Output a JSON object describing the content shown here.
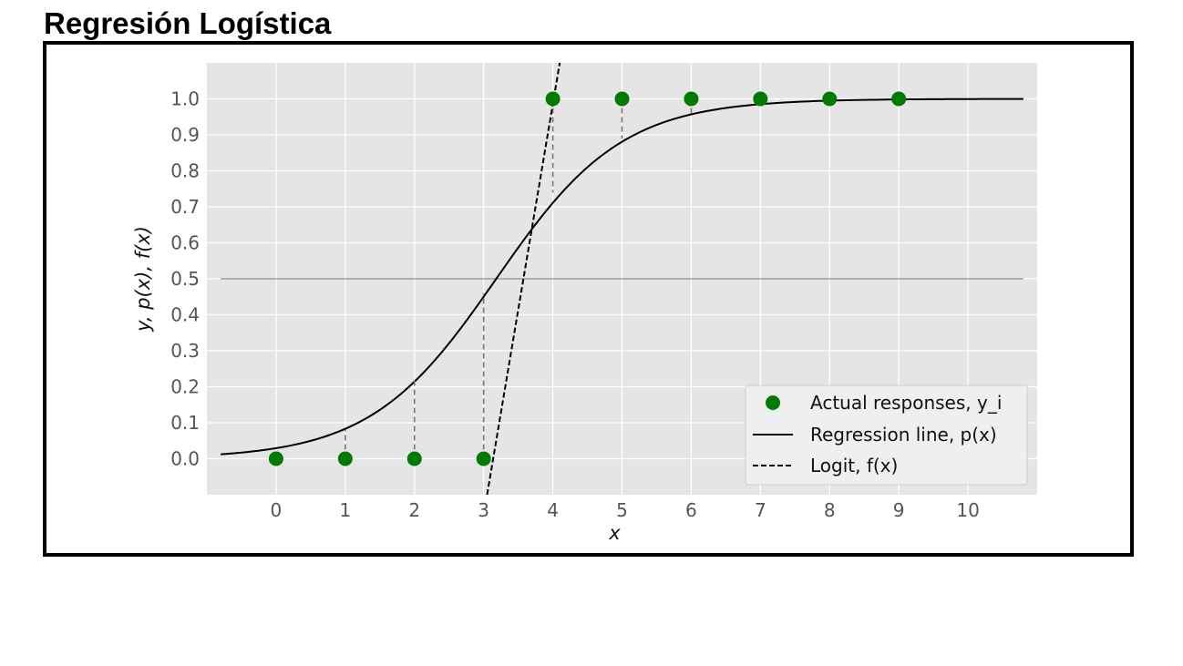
{
  "page_title": "Regresión Logística",
  "chart_data": {
    "type": "scatter",
    "xlabel": "x",
    "ylabel": "y, p(x), f(x)",
    "xlim": [
      -1,
      11
    ],
    "ylim": [
      -0.1,
      1.1
    ],
    "x_ticks": [
      "0",
      "1",
      "2",
      "3",
      "4",
      "5",
      "6",
      "7",
      "8",
      "9",
      "10"
    ],
    "y_ticks": [
      "0.0",
      "0.1",
      "0.2",
      "0.3",
      "0.4",
      "0.5",
      "0.6",
      "0.7",
      "0.8",
      "0.9",
      "1.0"
    ],
    "grid": true,
    "background": "#e5e5e5",
    "threshold_line": 0.5,
    "series": [
      {
        "name": "Actual responses, y_i",
        "kind": "points",
        "color": "#007a00",
        "x": [
          0,
          1,
          2,
          3,
          4,
          5,
          6,
          7,
          8,
          9
        ],
        "y": [
          0,
          0,
          0,
          0,
          1,
          1,
          1,
          1,
          1,
          1
        ]
      },
      {
        "name": "Regression line, p(x)",
        "kind": "line",
        "color": "#000000",
        "intercept": -3.5,
        "slope": 1.1
      },
      {
        "name": "Logit, f(x)",
        "kind": "dashed-line",
        "color": "#000000",
        "x": [
          3.05,
          4.1
        ],
        "y": [
          -0.1,
          1.1
        ]
      }
    ],
    "residuals": {
      "style": "dashed",
      "color": "#777777",
      "x": [
        1,
        2,
        3,
        4,
        5,
        6,
        7
      ],
      "from_y": [
        0,
        0,
        0,
        1,
        1,
        1,
        1
      ],
      "to_y": [
        0.08,
        0.22,
        0.46,
        0.74,
        0.89,
        0.96,
        0.985
      ]
    },
    "legend": {
      "position": "lower-right",
      "entries": [
        "Actual responses, y_i",
        "Regression line, p(x)",
        "Logit, f(x)"
      ]
    }
  }
}
